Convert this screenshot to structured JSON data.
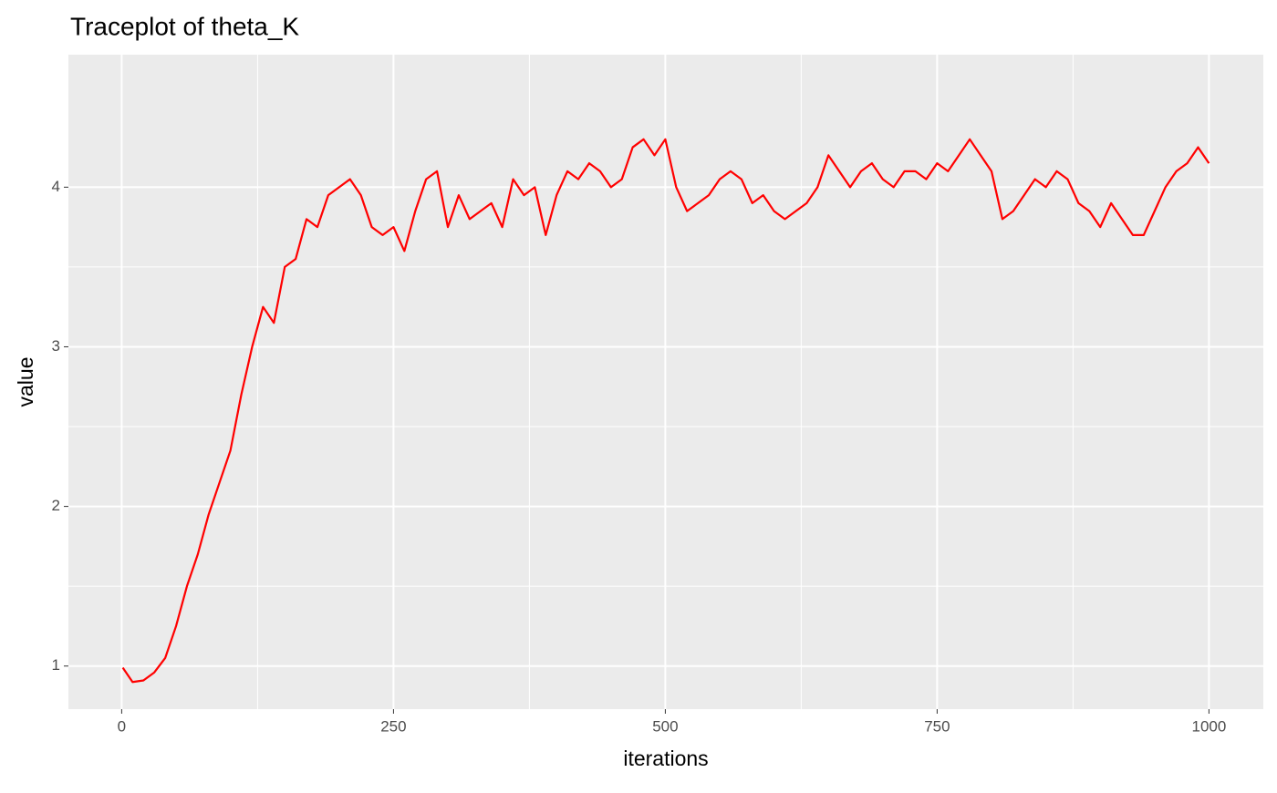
{
  "chart_data": {
    "type": "line",
    "title": "Traceplot of theta_K",
    "x_label": "iterations",
    "y_label": "value",
    "x": [
      1,
      10,
      20,
      30,
      40,
      50,
      60,
      70,
      80,
      90,
      100,
      110,
      120,
      130,
      140,
      150,
      160,
      170,
      180,
      190,
      200,
      210,
      220,
      230,
      240,
      250,
      260,
      270,
      280,
      290,
      300,
      310,
      320,
      330,
      340,
      350,
      360,
      370,
      380,
      390,
      400,
      410,
      420,
      430,
      440,
      450,
      460,
      470,
      480,
      490,
      500,
      510,
      520,
      530,
      540,
      550,
      560,
      570,
      580,
      590,
      600,
      610,
      620,
      630,
      640,
      650,
      660,
      670,
      680,
      690,
      700,
      710,
      720,
      730,
      740,
      750,
      760,
      770,
      780,
      790,
      800,
      810,
      820,
      830,
      840,
      850,
      860,
      870,
      880,
      890,
      900,
      910,
      920,
      930,
      940,
      950,
      960,
      970,
      980,
      990,
      1000
    ],
    "series": [
      {
        "name": "theta_K",
        "color": "#ff0000",
        "values": [
          0.99,
          0.9,
          0.91,
          0.96,
          1.05,
          1.25,
          1.5,
          1.7,
          1.95,
          2.15,
          2.35,
          2.7,
          3.0,
          3.25,
          3.15,
          3.5,
          3.55,
          3.8,
          3.75,
          3.95,
          4.0,
          4.05,
          3.95,
          3.75,
          3.7,
          3.75,
          3.6,
          3.85,
          4.05,
          4.1,
          3.75,
          3.95,
          3.8,
          3.85,
          3.9,
          3.75,
          4.05,
          3.95,
          4.0,
          3.7,
          3.95,
          4.1,
          4.05,
          4.15,
          4.1,
          4.0,
          4.05,
          4.25,
          4.3,
          4.2,
          4.3,
          4.0,
          3.85,
          3.9,
          3.95,
          4.05,
          4.1,
          4.05,
          3.9,
          3.95,
          3.85,
          3.8,
          3.85,
          3.9,
          4.0,
          4.2,
          4.1,
          4.0,
          4.1,
          4.15,
          4.05,
          4.0,
          4.1,
          4.1,
          4.05,
          4.15,
          4.1,
          4.2,
          4.3,
          4.2,
          4.1,
          3.8,
          3.85,
          3.95,
          4.05,
          4.0,
          4.1,
          4.05,
          3.9,
          3.85,
          3.75,
          3.9,
          3.8,
          3.7,
          3.7,
          3.85,
          4.0,
          4.1,
          4.15,
          4.25,
          4.15
        ]
      }
    ],
    "xlim": [
      -49,
      1050
    ],
    "ylim": [
      0.73,
      4.83
    ],
    "xticks": [
      0,
      250,
      500,
      750,
      1000
    ],
    "yticks": [
      1,
      2,
      3,
      4
    ],
    "grid": true
  }
}
